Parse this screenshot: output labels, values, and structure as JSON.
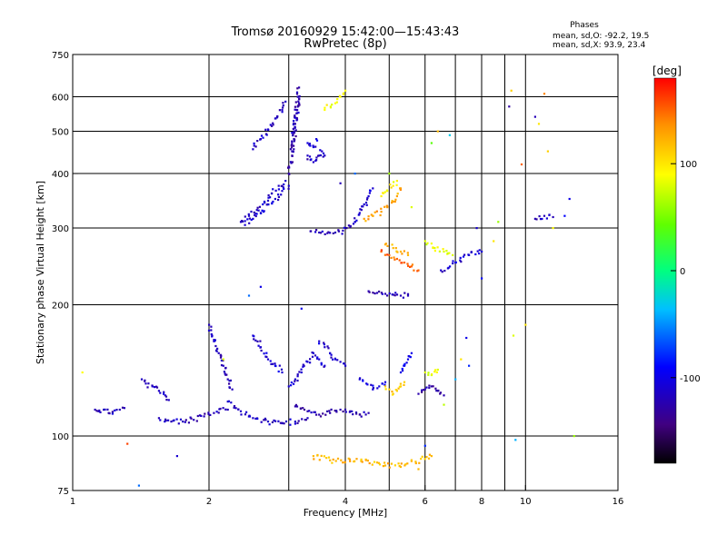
{
  "chart_data": {
    "type": "scatter",
    "title": "Tromsø 20160929 15:42:00—15:43:43",
    "subtitle": "RwPretec (8p)",
    "xlabel": "Frequency [MHz]",
    "ylabel": "Stationary phase Virtual Height [km]",
    "x_scale": "log",
    "y_scale": "log",
    "xlim": [
      1,
      16
    ],
    "ylim": [
      75,
      750
    ],
    "x_ticks": [
      1,
      2,
      4,
      6,
      8,
      10,
      16
    ],
    "y_ticks": [
      75,
      100,
      200,
      300,
      400,
      500,
      600,
      750
    ],
    "grid": true,
    "grid_x": [
      2,
      3,
      4,
      5,
      6,
      7,
      8,
      9,
      10
    ],
    "grid_y": [
      100,
      200,
      300,
      400,
      500,
      600
    ],
    "info": {
      "heading": "Phases",
      "line1": "mean, sd,O: -92.2, 19.5",
      "line2": "mean, sd,X:  93.9, 23.4"
    },
    "colorbar": {
      "label": "[deg]",
      "min": -180,
      "max": 180,
      "ticks": [
        100,
        0,
        -100
      ]
    },
    "traces": [
      {
        "phase": -120,
        "points": [
          [
            1.12,
            115
          ],
          [
            1.14,
            114
          ],
          [
            1.17,
            115
          ],
          [
            1.2,
            113
          ],
          [
            1.27,
            115
          ],
          [
            1.3,
            116
          ]
        ]
      },
      {
        "phase": -115,
        "points": [
          [
            1.42,
            135
          ],
          [
            1.45,
            132
          ],
          [
            1.5,
            130
          ],
          [
            1.55,
            127
          ],
          [
            1.6,
            124
          ],
          [
            1.63,
            121
          ]
        ]
      },
      {
        "phase": -120,
        "points": [
          [
            1.55,
            110
          ],
          [
            1.65,
            108
          ],
          [
            1.75,
            108
          ],
          [
            1.85,
            109
          ],
          [
            1.95,
            111
          ],
          [
            2.05,
            113
          ],
          [
            2.2,
            115
          ]
        ]
      },
      {
        "phase": -118,
        "points": [
          [
            2.0,
            180
          ],
          [
            2.02,
            175
          ],
          [
            2.05,
            165
          ],
          [
            2.1,
            155
          ],
          [
            2.15,
            145
          ],
          [
            2.2,
            135
          ],
          [
            2.25,
            128
          ]
        ]
      },
      {
        "phase": -115,
        "points": [
          [
            2.2,
            120
          ],
          [
            2.35,
            114
          ],
          [
            2.5,
            110
          ],
          [
            2.7,
            108
          ],
          [
            2.9,
            107
          ],
          [
            3.1,
            108
          ],
          [
            3.3,
            110
          ]
        ]
      },
      {
        "phase": -125,
        "points": [
          [
            3.1,
            117
          ],
          [
            3.3,
            114
          ],
          [
            3.5,
            112
          ],
          [
            3.7,
            113
          ],
          [
            3.9,
            115
          ],
          [
            4.1,
            114
          ],
          [
            4.3,
            112
          ],
          [
            4.5,
            113
          ]
        ]
      },
      {
        "phase": -110,
        "points": [
          [
            2.5,
            170
          ],
          [
            2.6,
            160
          ],
          [
            2.7,
            150
          ],
          [
            2.8,
            145
          ],
          [
            2.9,
            140
          ]
        ]
      },
      {
        "phase": -110,
        "points": [
          [
            3.0,
            130
          ],
          [
            3.1,
            135
          ],
          [
            3.2,
            140
          ],
          [
            3.3,
            148
          ],
          [
            3.4,
            155
          ],
          [
            3.5,
            150
          ],
          [
            3.6,
            145
          ]
        ]
      },
      {
        "phase": -112,
        "points": [
          [
            3.5,
            165
          ],
          [
            3.6,
            160
          ],
          [
            3.7,
            155
          ],
          [
            3.8,
            150
          ],
          [
            3.9,
            148
          ],
          [
            4.0,
            145
          ]
        ]
      },
      {
        "phase": -105,
        "points": [
          [
            4.3,
            135
          ],
          [
            4.45,
            132
          ],
          [
            4.6,
            128
          ],
          [
            4.75,
            130
          ],
          [
            4.9,
            133
          ]
        ]
      },
      {
        "phase": 110,
        "points": [
          [
            4.9,
            130
          ],
          [
            5.0,
            128
          ],
          [
            5.1,
            125
          ],
          [
            5.2,
            127
          ],
          [
            5.3,
            130
          ],
          [
            5.4,
            133
          ]
        ]
      },
      {
        "phase": -100,
        "points": [
          [
            5.3,
            140
          ],
          [
            5.4,
            145
          ],
          [
            5.5,
            150
          ],
          [
            5.6,
            155
          ]
        ]
      },
      {
        "phase": -125,
        "points": [
          [
            5.8,
            125
          ],
          [
            6.0,
            128
          ],
          [
            6.2,
            130
          ],
          [
            6.4,
            127
          ],
          [
            6.6,
            124
          ]
        ]
      },
      {
        "phase": 80,
        "points": [
          [
            6.0,
            140
          ],
          [
            6.2,
            138
          ],
          [
            6.4,
            142
          ]
        ]
      },
      {
        "phase": -115,
        "points": [
          [
            2.35,
            310
          ],
          [
            2.45,
            320
          ],
          [
            2.55,
            330
          ],
          [
            2.65,
            345
          ],
          [
            2.75,
            360
          ],
          [
            2.85,
            375
          ],
          [
            2.95,
            385
          ]
        ]
      },
      {
        "phase": -110,
        "points": [
          [
            2.4,
            305
          ],
          [
            2.5,
            315
          ],
          [
            2.6,
            325
          ],
          [
            2.7,
            340
          ],
          [
            2.8,
            350
          ],
          [
            2.9,
            365
          ],
          [
            3.0,
            375
          ]
        ]
      },
      {
        "phase": -115,
        "points": [
          [
            2.5,
            455
          ],
          [
            2.6,
            480
          ],
          [
            2.7,
            505
          ],
          [
            2.8,
            535
          ],
          [
            2.9,
            560
          ],
          [
            2.95,
            585
          ]
        ]
      },
      {
        "phase": -125,
        "points": [
          [
            3.0,
            400
          ],
          [
            3.05,
            440
          ],
          [
            3.08,
            480
          ],
          [
            3.1,
            520
          ],
          [
            3.12,
            560
          ],
          [
            3.14,
            600
          ],
          [
            3.16,
            630
          ]
        ]
      },
      {
        "phase": -120,
        "points": [
          [
            3.05,
            450
          ],
          [
            3.08,
            500
          ],
          [
            3.12,
            550
          ],
          [
            3.15,
            600
          ]
        ]
      },
      {
        "phase": -115,
        "points": [
          [
            3.3,
            440
          ],
          [
            3.35,
            430
          ],
          [
            3.4,
            425
          ],
          [
            3.45,
            430
          ],
          [
            3.5,
            440
          ],
          [
            3.55,
            450
          ],
          [
            3.6,
            440
          ]
        ]
      },
      {
        "phase": -105,
        "points": [
          [
            3.3,
            470
          ],
          [
            3.4,
            460
          ],
          [
            3.45,
            480
          ]
        ]
      },
      {
        "phase": -120,
        "points": [
          [
            3.35,
            295
          ],
          [
            3.5,
            293
          ],
          [
            3.65,
            292
          ],
          [
            3.8,
            293
          ],
          [
            3.95,
            296
          ],
          [
            4.1,
            302
          ],
          [
            4.2,
            310
          ]
        ]
      },
      {
        "phase": -110,
        "points": [
          [
            4.2,
            310
          ],
          [
            4.3,
            325
          ],
          [
            4.4,
            340
          ],
          [
            4.5,
            355
          ],
          [
            4.6,
            370
          ]
        ]
      },
      {
        "phase": 130,
        "points": [
          [
            4.4,
            315
          ],
          [
            4.6,
            320
          ],
          [
            4.8,
            327
          ],
          [
            4.95,
            335
          ],
          [
            5.1,
            345
          ],
          [
            5.2,
            355
          ],
          [
            5.3,
            370
          ]
        ]
      },
      {
        "phase": 95,
        "points": [
          [
            4.8,
            355
          ],
          [
            4.95,
            365
          ],
          [
            5.1,
            375
          ],
          [
            5.2,
            385
          ]
        ]
      },
      {
        "phase": 150,
        "points": [
          [
            4.8,
            265
          ],
          [
            5.0,
            260
          ],
          [
            5.2,
            255
          ],
          [
            5.4,
            250
          ],
          [
            5.6,
            245
          ],
          [
            5.8,
            240
          ]
        ]
      },
      {
        "phase": 120,
        "points": [
          [
            4.9,
            275
          ],
          [
            5.1,
            270
          ],
          [
            5.3,
            265
          ],
          [
            5.5,
            260
          ]
        ]
      },
      {
        "phase": -120,
        "points": [
          [
            4.5,
            215
          ],
          [
            4.7,
            213
          ],
          [
            4.9,
            212
          ],
          [
            5.1,
            211
          ],
          [
            5.3,
            210
          ],
          [
            5.5,
            210
          ]
        ]
      },
      {
        "phase": 80,
        "points": [
          [
            6.0,
            280
          ],
          [
            6.3,
            270
          ],
          [
            6.6,
            265
          ],
          [
            6.9,
            260
          ]
        ]
      },
      {
        "phase": -110,
        "points": [
          [
            6.5,
            240
          ],
          [
            7.0,
            250
          ],
          [
            7.5,
            260
          ],
          [
            8.0,
            265
          ]
        ]
      },
      {
        "phase": -120,
        "points": [
          [
            10.5,
            315
          ],
          [
            11.0,
            320
          ],
          [
            11.5,
            318
          ]
        ]
      },
      {
        "phase": 90,
        "points": [
          [
            3.6,
            560
          ],
          [
            3.8,
            580
          ],
          [
            3.9,
            600
          ],
          [
            4.0,
            620
          ]
        ]
      },
      {
        "phase": 120,
        "points": [
          [
            3.4,
            90
          ],
          [
            3.7,
            88
          ],
          [
            4.7,
            87
          ],
          [
            5.3,
            85
          ],
          [
            6.2,
            90
          ]
        ]
      }
    ],
    "scatter": [
      [
        1.05,
        140,
        90
      ],
      [
        1.32,
        96,
        160
      ],
      [
        1.4,
        77,
        -60
      ],
      [
        1.7,
        90,
        -110
      ],
      [
        2.15,
        150,
        80
      ],
      [
        2.6,
        220,
        -100
      ],
      [
        3.9,
        380,
        -120
      ],
      [
        4.2,
        400,
        -60
      ],
      [
        5.0,
        400,
        60
      ],
      [
        5.6,
        335,
        80
      ],
      [
        6.2,
        470,
        40
      ],
      [
        6.4,
        500,
        120
      ],
      [
        6.8,
        490,
        -30
      ],
      [
        7.2,
        150,
        100
      ],
      [
        7.5,
        145,
        -80
      ],
      [
        7.8,
        300,
        -110
      ],
      [
        8.5,
        280,
        100
      ],
      [
        9.2,
        570,
        -130
      ],
      [
        9.3,
        620,
        110
      ],
      [
        9.8,
        420,
        150
      ],
      [
        9.4,
        170,
        80
      ],
      [
        9.5,
        98,
        -40
      ],
      [
        10.5,
        540,
        -120
      ],
      [
        10.7,
        520,
        100
      ],
      [
        11.0,
        610,
        140
      ],
      [
        11.2,
        450,
        110
      ],
      [
        11.5,
        300,
        90
      ],
      [
        12.2,
        320,
        -90
      ],
      [
        12.5,
        350,
        -100
      ],
      [
        12.8,
        100,
        60
      ],
      [
        6.0,
        95,
        -80
      ],
      [
        6.6,
        118,
        70
      ],
      [
        7.0,
        135,
        -40
      ],
      [
        7.4,
        168,
        -100
      ],
      [
        5.8,
        84,
        120
      ],
      [
        8.0,
        230,
        -90
      ],
      [
        8.7,
        310,
        60
      ],
      [
        10.0,
        180,
        100
      ],
      [
        3.2,
        196,
        -100
      ],
      [
        2.45,
        210,
        -60
      ]
    ]
  }
}
